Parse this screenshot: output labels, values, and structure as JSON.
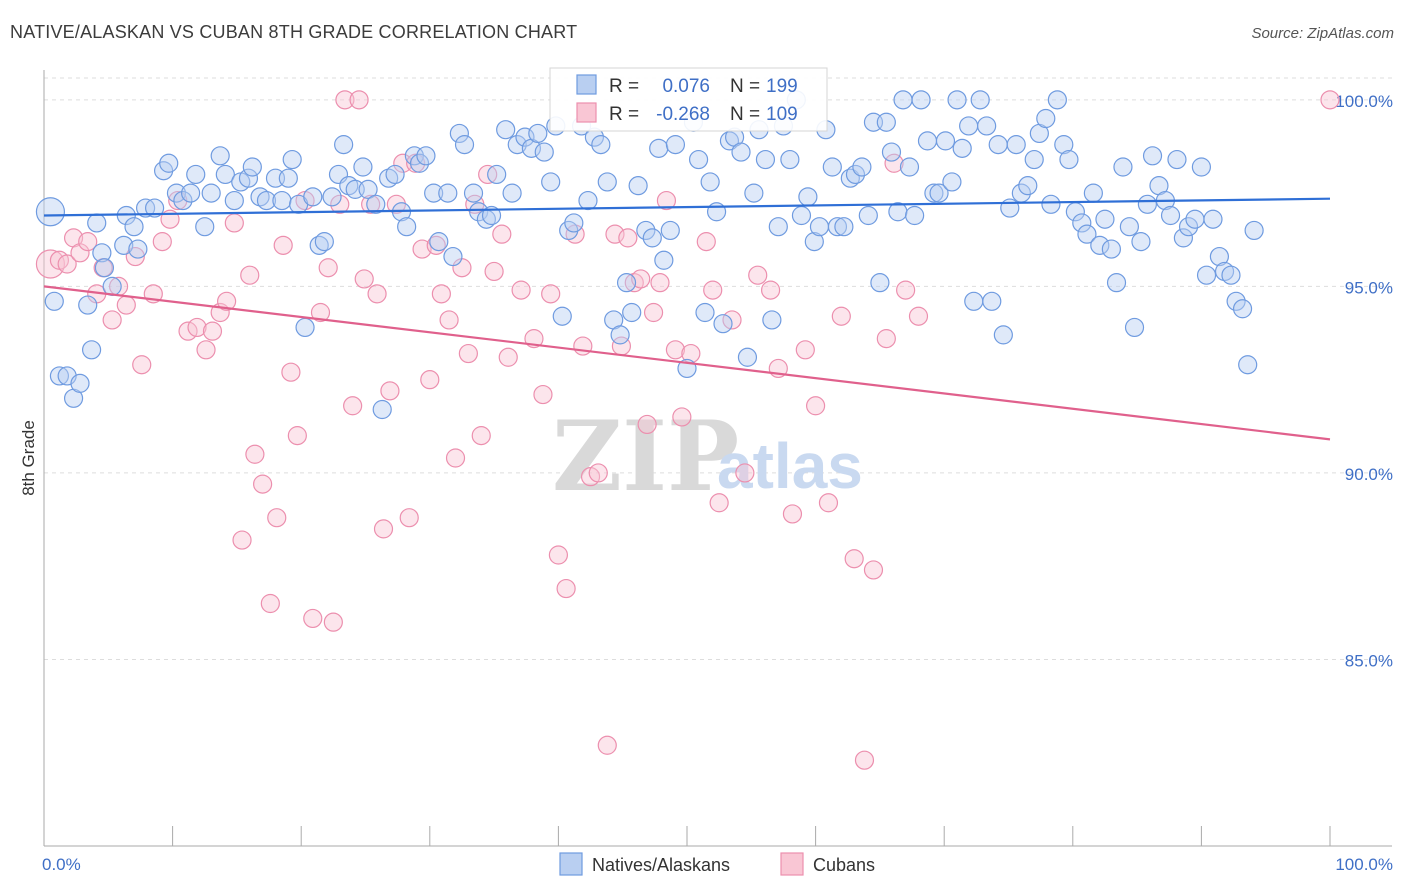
{
  "title": "NATIVE/ALASKAN VS CUBAN 8TH GRADE CORRELATION CHART",
  "source": "Source: ZipAtlas.com",
  "watermark": {
    "part1": "ZIP",
    "part2": "atlas"
  },
  "stats": {
    "row1": {
      "r_label": "R =",
      "r_value": "0.076",
      "n_label": "N =",
      "n_value": "199"
    },
    "row2": {
      "r_label": "R =",
      "r_value": "-0.268",
      "n_label": "N =",
      "n_value": "109"
    }
  },
  "colors": {
    "blue_fill": "#b9cff1",
    "blue_stroke": "#6f9be0",
    "blue_line": "#2f6fd6",
    "pink_fill": "#f9c6d4",
    "pink_stroke": "#ec8fae",
    "pink_line": "#e0608c",
    "tick_text": "#3f6fc6",
    "grid": "#dddddd"
  },
  "chart_data": {
    "type": "scatter",
    "title": "NATIVE/ALASKAN VS CUBAN 8TH GRADE CORRELATION CHART",
    "xlabel": "",
    "ylabel": "8th Grade",
    "xlim": [
      0,
      100
    ],
    "ylim": [
      80.0,
      100.8
    ],
    "x_tick_labels": [
      "0.0%",
      "100.0%"
    ],
    "y_ticks": [
      85,
      90,
      95,
      100
    ],
    "y_tick_labels": [
      "85.0%",
      "90.0%",
      "95.0%",
      "100.0%"
    ],
    "grid": true,
    "legend_position": "bottom-center",
    "series": [
      {
        "name": "Natives/Alaskans",
        "r": 0.076,
        "n": 199,
        "trend": {
          "x": [
            0,
            100
          ],
          "y": [
            96.9,
            97.35
          ]
        },
        "points": [
          [
            0.5,
            97
          ],
          [
            0.8,
            94.6
          ],
          [
            1.2,
            92.6
          ],
          [
            1.8,
            92.6
          ],
          [
            2.3,
            92
          ],
          [
            2.8,
            92.4
          ],
          [
            3.4,
            94.5
          ],
          [
            3.7,
            93.3
          ],
          [
            4.1,
            96.7
          ],
          [
            4.5,
            95.9
          ],
          [
            4.7,
            95.5
          ],
          [
            5.3,
            95
          ],
          [
            6.2,
            96.1
          ],
          [
            6.4,
            96.9
          ],
          [
            7.0,
            96.6
          ],
          [
            7.3,
            96
          ],
          [
            7.9,
            97.1
          ],
          [
            8.6,
            97.1
          ],
          [
            9.3,
            98.1
          ],
          [
            9.7,
            98.3
          ],
          [
            10.3,
            97.5
          ],
          [
            10.8,
            97.3
          ],
          [
            11.4,
            97.5
          ],
          [
            11.8,
            98
          ],
          [
            12.5,
            96.6
          ],
          [
            13.0,
            97.5
          ],
          [
            13.7,
            98.5
          ],
          [
            14.1,
            98
          ],
          [
            14.8,
            97.3
          ],
          [
            15.3,
            97.8
          ],
          [
            15.9,
            97.9
          ],
          [
            16.2,
            98.2
          ],
          [
            16.8,
            97.4
          ],
          [
            17.3,
            97.3
          ],
          [
            18.0,
            97.9
          ],
          [
            18.5,
            97.3
          ],
          [
            19.0,
            97.9
          ],
          [
            19.3,
            98.4
          ],
          [
            19.8,
            97.2
          ],
          [
            20.3,
            93.9
          ],
          [
            20.9,
            97.4
          ],
          [
            21.4,
            96.1
          ],
          [
            21.8,
            96.2
          ],
          [
            22.4,
            97.4
          ],
          [
            22.9,
            98
          ],
          [
            23.3,
            98.8
          ],
          [
            23.7,
            97.7
          ],
          [
            24.2,
            97.6
          ],
          [
            24.8,
            98.2
          ],
          [
            25.2,
            97.6
          ],
          [
            25.8,
            97.2
          ],
          [
            26.3,
            91.7
          ],
          [
            26.8,
            97.9
          ],
          [
            27.3,
            98
          ],
          [
            27.8,
            97.0
          ],
          [
            28.2,
            96.6
          ],
          [
            28.8,
            98.5
          ],
          [
            29.2,
            98.3
          ],
          [
            29.7,
            98.5
          ],
          [
            30.3,
            97.5
          ],
          [
            30.7,
            96.2
          ],
          [
            31.4,
            97.5
          ],
          [
            31.8,
            95.8
          ],
          [
            32.3,
            99.1
          ],
          [
            32.7,
            98.8
          ],
          [
            33.4,
            97.5
          ],
          [
            33.8,
            97.0
          ],
          [
            34.4,
            96.8
          ],
          [
            34.8,
            96.9
          ],
          [
            35.2,
            98.0
          ],
          [
            35.9,
            99.2
          ],
          [
            36.4,
            97.5
          ],
          [
            36.8,
            98.8
          ],
          [
            37.4,
            99.0
          ],
          [
            37.9,
            98.7
          ],
          [
            38.4,
            99.1
          ],
          [
            38.9,
            98.6
          ],
          [
            39.4,
            97.8
          ],
          [
            39.8,
            99.3
          ],
          [
            40.3,
            94.2
          ],
          [
            40.8,
            96.5
          ],
          [
            41.2,
            96.7
          ],
          [
            41.8,
            99.3
          ],
          [
            42.3,
            97.3
          ],
          [
            42.8,
            99.0
          ],
          [
            43.3,
            98.8
          ],
          [
            43.8,
            97.8
          ],
          [
            44.3,
            94.1
          ],
          [
            44.8,
            93.7
          ],
          [
            45.3,
            95.1
          ],
          [
            45.7,
            94.3
          ],
          [
            46.2,
            97.7
          ],
          [
            46.8,
            96.5
          ],
          [
            47.3,
            96.3
          ],
          [
            47.8,
            98.7
          ],
          [
            48.2,
            95.7
          ],
          [
            48.7,
            96.5
          ],
          [
            49.1,
            98.8
          ],
          [
            50.0,
            92.8
          ],
          [
            50.5,
            99.4
          ],
          [
            50.9,
            98.4
          ],
          [
            51.4,
            94.3
          ],
          [
            51.8,
            97.8
          ],
          [
            52.3,
            97.0
          ],
          [
            52.8,
            94.0
          ],
          [
            53.3,
            98.9
          ],
          [
            53.7,
            99.0
          ],
          [
            54.2,
            98.6
          ],
          [
            54.7,
            93.1
          ],
          [
            55.2,
            97.5
          ],
          [
            55.6,
            99.2
          ],
          [
            56.1,
            98.4
          ],
          [
            56.6,
            94.1
          ],
          [
            57.1,
            96.6
          ],
          [
            57.5,
            99.3
          ],
          [
            58.0,
            98.4
          ],
          [
            58.5,
            100.0
          ],
          [
            58.9,
            96.9
          ],
          [
            59.4,
            97.4
          ],
          [
            59.9,
            96.2
          ],
          [
            60.3,
            96.6
          ],
          [
            60.8,
            99.2
          ],
          [
            61.3,
            98.2
          ],
          [
            61.7,
            96.6
          ],
          [
            62.2,
            96.6
          ],
          [
            62.7,
            97.9
          ],
          [
            63.1,
            98
          ],
          [
            63.6,
            98.2
          ],
          [
            64.1,
            96.9
          ],
          [
            64.5,
            99.4
          ],
          [
            65.0,
            95.1
          ],
          [
            65.5,
            99.4
          ],
          [
            65.9,
            98.6
          ],
          [
            66.4,
            97.0
          ],
          [
            66.8,
            100.0
          ],
          [
            67.3,
            98.2
          ],
          [
            67.7,
            96.9
          ],
          [
            68.2,
            100.0
          ],
          [
            68.7,
            98.9
          ],
          [
            69.2,
            97.5
          ],
          [
            69.6,
            97.5
          ],
          [
            70.1,
            98.9
          ],
          [
            70.6,
            97.8
          ],
          [
            71.0,
            100.0
          ],
          [
            71.4,
            98.7
          ],
          [
            71.9,
            99.3
          ],
          [
            72.3,
            94.6
          ],
          [
            72.8,
            100.0
          ],
          [
            73.3,
            99.3
          ],
          [
            73.7,
            94.6
          ],
          [
            74.2,
            98.8
          ],
          [
            74.6,
            93.7
          ],
          [
            75.1,
            97.1
          ],
          [
            75.6,
            98.8
          ],
          [
            76.0,
            97.5
          ],
          [
            76.5,
            97.7
          ],
          [
            77.0,
            98.4
          ],
          [
            77.4,
            99.1
          ],
          [
            77.9,
            99.5
          ],
          [
            78.3,
            97.2
          ],
          [
            78.8,
            100.0
          ],
          [
            79.3,
            98.8
          ],
          [
            79.7,
            98.4
          ],
          [
            80.2,
            97.0
          ],
          [
            80.7,
            96.7
          ],
          [
            81.1,
            96.4
          ],
          [
            81.6,
            97.5
          ],
          [
            82.1,
            96.1
          ],
          [
            82.5,
            96.8
          ],
          [
            83.0,
            96.0
          ],
          [
            83.4,
            95.1
          ],
          [
            83.9,
            98.2
          ],
          [
            84.4,
            96.6
          ],
          [
            84.8,
            93.9
          ],
          [
            85.3,
            96.2
          ],
          [
            85.8,
            97.2
          ],
          [
            86.2,
            98.5
          ],
          [
            86.7,
            97.7
          ],
          [
            87.2,
            97.3
          ],
          [
            87.6,
            96.9
          ],
          [
            88.1,
            98.4
          ],
          [
            88.6,
            96.3
          ],
          [
            89.0,
            96.6
          ],
          [
            89.5,
            96.8
          ],
          [
            90.0,
            98.2
          ],
          [
            90.4,
            95.3
          ],
          [
            90.9,
            96.8
          ],
          [
            91.4,
            95.8
          ],
          [
            91.8,
            95.4
          ],
          [
            92.3,
            95.3
          ],
          [
            92.7,
            94.6
          ],
          [
            93.2,
            94.4
          ],
          [
            93.6,
            92.9
          ],
          [
            94.1,
            96.5
          ]
        ]
      },
      {
        "name": "Cubans",
        "r": -0.268,
        "n": 109,
        "trend": {
          "x": [
            0,
            100
          ],
          "y": [
            95.0,
            90.9
          ]
        },
        "points": [
          [
            0.5,
            95.6
          ],
          [
            1.2,
            95.7
          ],
          [
            1.8,
            95.6
          ],
          [
            2.3,
            96.3
          ],
          [
            2.8,
            95.9
          ],
          [
            3.4,
            96.2
          ],
          [
            4.1,
            94.8
          ],
          [
            4.6,
            95.5
          ],
          [
            5.3,
            94.1
          ],
          [
            5.8,
            95.0
          ],
          [
            6.4,
            94.5
          ],
          [
            7.1,
            95.8
          ],
          [
            7.6,
            92.9
          ],
          [
            8.5,
            94.8
          ],
          [
            9.2,
            96.2
          ],
          [
            9.8,
            96.8
          ],
          [
            10.4,
            97.3
          ],
          [
            11.2,
            93.8
          ],
          [
            11.9,
            93.9
          ],
          [
            12.6,
            93.3
          ],
          [
            13.1,
            93.8
          ],
          [
            13.7,
            94.3
          ],
          [
            14.2,
            94.6
          ],
          [
            14.8,
            96.7
          ],
          [
            15.4,
            88.2
          ],
          [
            16.0,
            95.3
          ],
          [
            16.4,
            90.5
          ],
          [
            17.0,
            89.7
          ],
          [
            17.6,
            86.5
          ],
          [
            18.1,
            88.8
          ],
          [
            18.6,
            96.1
          ],
          [
            19.2,
            92.7
          ],
          [
            19.7,
            91.0
          ],
          [
            20.3,
            97.3
          ],
          [
            20.9,
            86.1
          ],
          [
            21.5,
            94.3
          ],
          [
            22.1,
            95.5
          ],
          [
            22.5,
            86.0
          ],
          [
            23.0,
            97.2
          ],
          [
            23.4,
            100.0
          ],
          [
            24.0,
            91.8
          ],
          [
            24.5,
            100.0
          ],
          [
            24.9,
            95.2
          ],
          [
            25.4,
            97.2
          ],
          [
            25.9,
            94.8
          ],
          [
            26.4,
            88.5
          ],
          [
            26.9,
            92.2
          ],
          [
            27.4,
            97.2
          ],
          [
            27.9,
            98.3
          ],
          [
            28.4,
            88.8
          ],
          [
            28.9,
            98.3
          ],
          [
            29.4,
            96.0
          ],
          [
            30.0,
            92.5
          ],
          [
            30.5,
            96.1
          ],
          [
            30.9,
            94.8
          ],
          [
            31.5,
            94.1
          ],
          [
            32.0,
            90.4
          ],
          [
            32.5,
            95.5
          ],
          [
            33.0,
            93.2
          ],
          [
            33.5,
            97.2
          ],
          [
            34.0,
            91.0
          ],
          [
            34.5,
            98.0
          ],
          [
            35.0,
            95.4
          ],
          [
            35.6,
            96.4
          ],
          [
            36.1,
            93.1
          ],
          [
            37.1,
            94.9
          ],
          [
            38.1,
            93.6
          ],
          [
            38.8,
            92.1
          ],
          [
            39.4,
            94.8
          ],
          [
            40.0,
            87.8
          ],
          [
            40.6,
            86.9
          ],
          [
            41.3,
            96.4
          ],
          [
            41.9,
            93.4
          ],
          [
            42.5,
            89.9
          ],
          [
            43.1,
            90.0
          ],
          [
            43.8,
            82.7
          ],
          [
            44.4,
            96.4
          ],
          [
            44.9,
            93.4
          ],
          [
            45.4,
            96.3
          ],
          [
            45.9,
            95.1
          ],
          [
            46.4,
            95.2
          ],
          [
            46.9,
            91.3
          ],
          [
            47.4,
            94.3
          ],
          [
            47.9,
            95.1
          ],
          [
            48.4,
            97.3
          ],
          [
            49.1,
            93.3
          ],
          [
            49.6,
            91.5
          ],
          [
            50.3,
            93.2
          ],
          [
            51.5,
            96.2
          ],
          [
            52.0,
            94.9
          ],
          [
            52.5,
            89.2
          ],
          [
            53.5,
            94.1
          ],
          [
            54.5,
            90.0
          ],
          [
            55.5,
            95.3
          ],
          [
            56.5,
            94.9
          ],
          [
            57.1,
            92.8
          ],
          [
            58.2,
            88.9
          ],
          [
            59.2,
            93.3
          ],
          [
            60.0,
            91.8
          ],
          [
            61.0,
            89.2
          ],
          [
            62.0,
            94.2
          ],
          [
            63.0,
            87.7
          ],
          [
            63.8,
            82.3
          ],
          [
            64.5,
            87.4
          ],
          [
            65.5,
            93.6
          ],
          [
            66.1,
            98.3
          ],
          [
            67.0,
            94.9
          ],
          [
            68.0,
            94.2
          ],
          [
            100.0,
            100.0
          ]
        ]
      }
    ]
  }
}
